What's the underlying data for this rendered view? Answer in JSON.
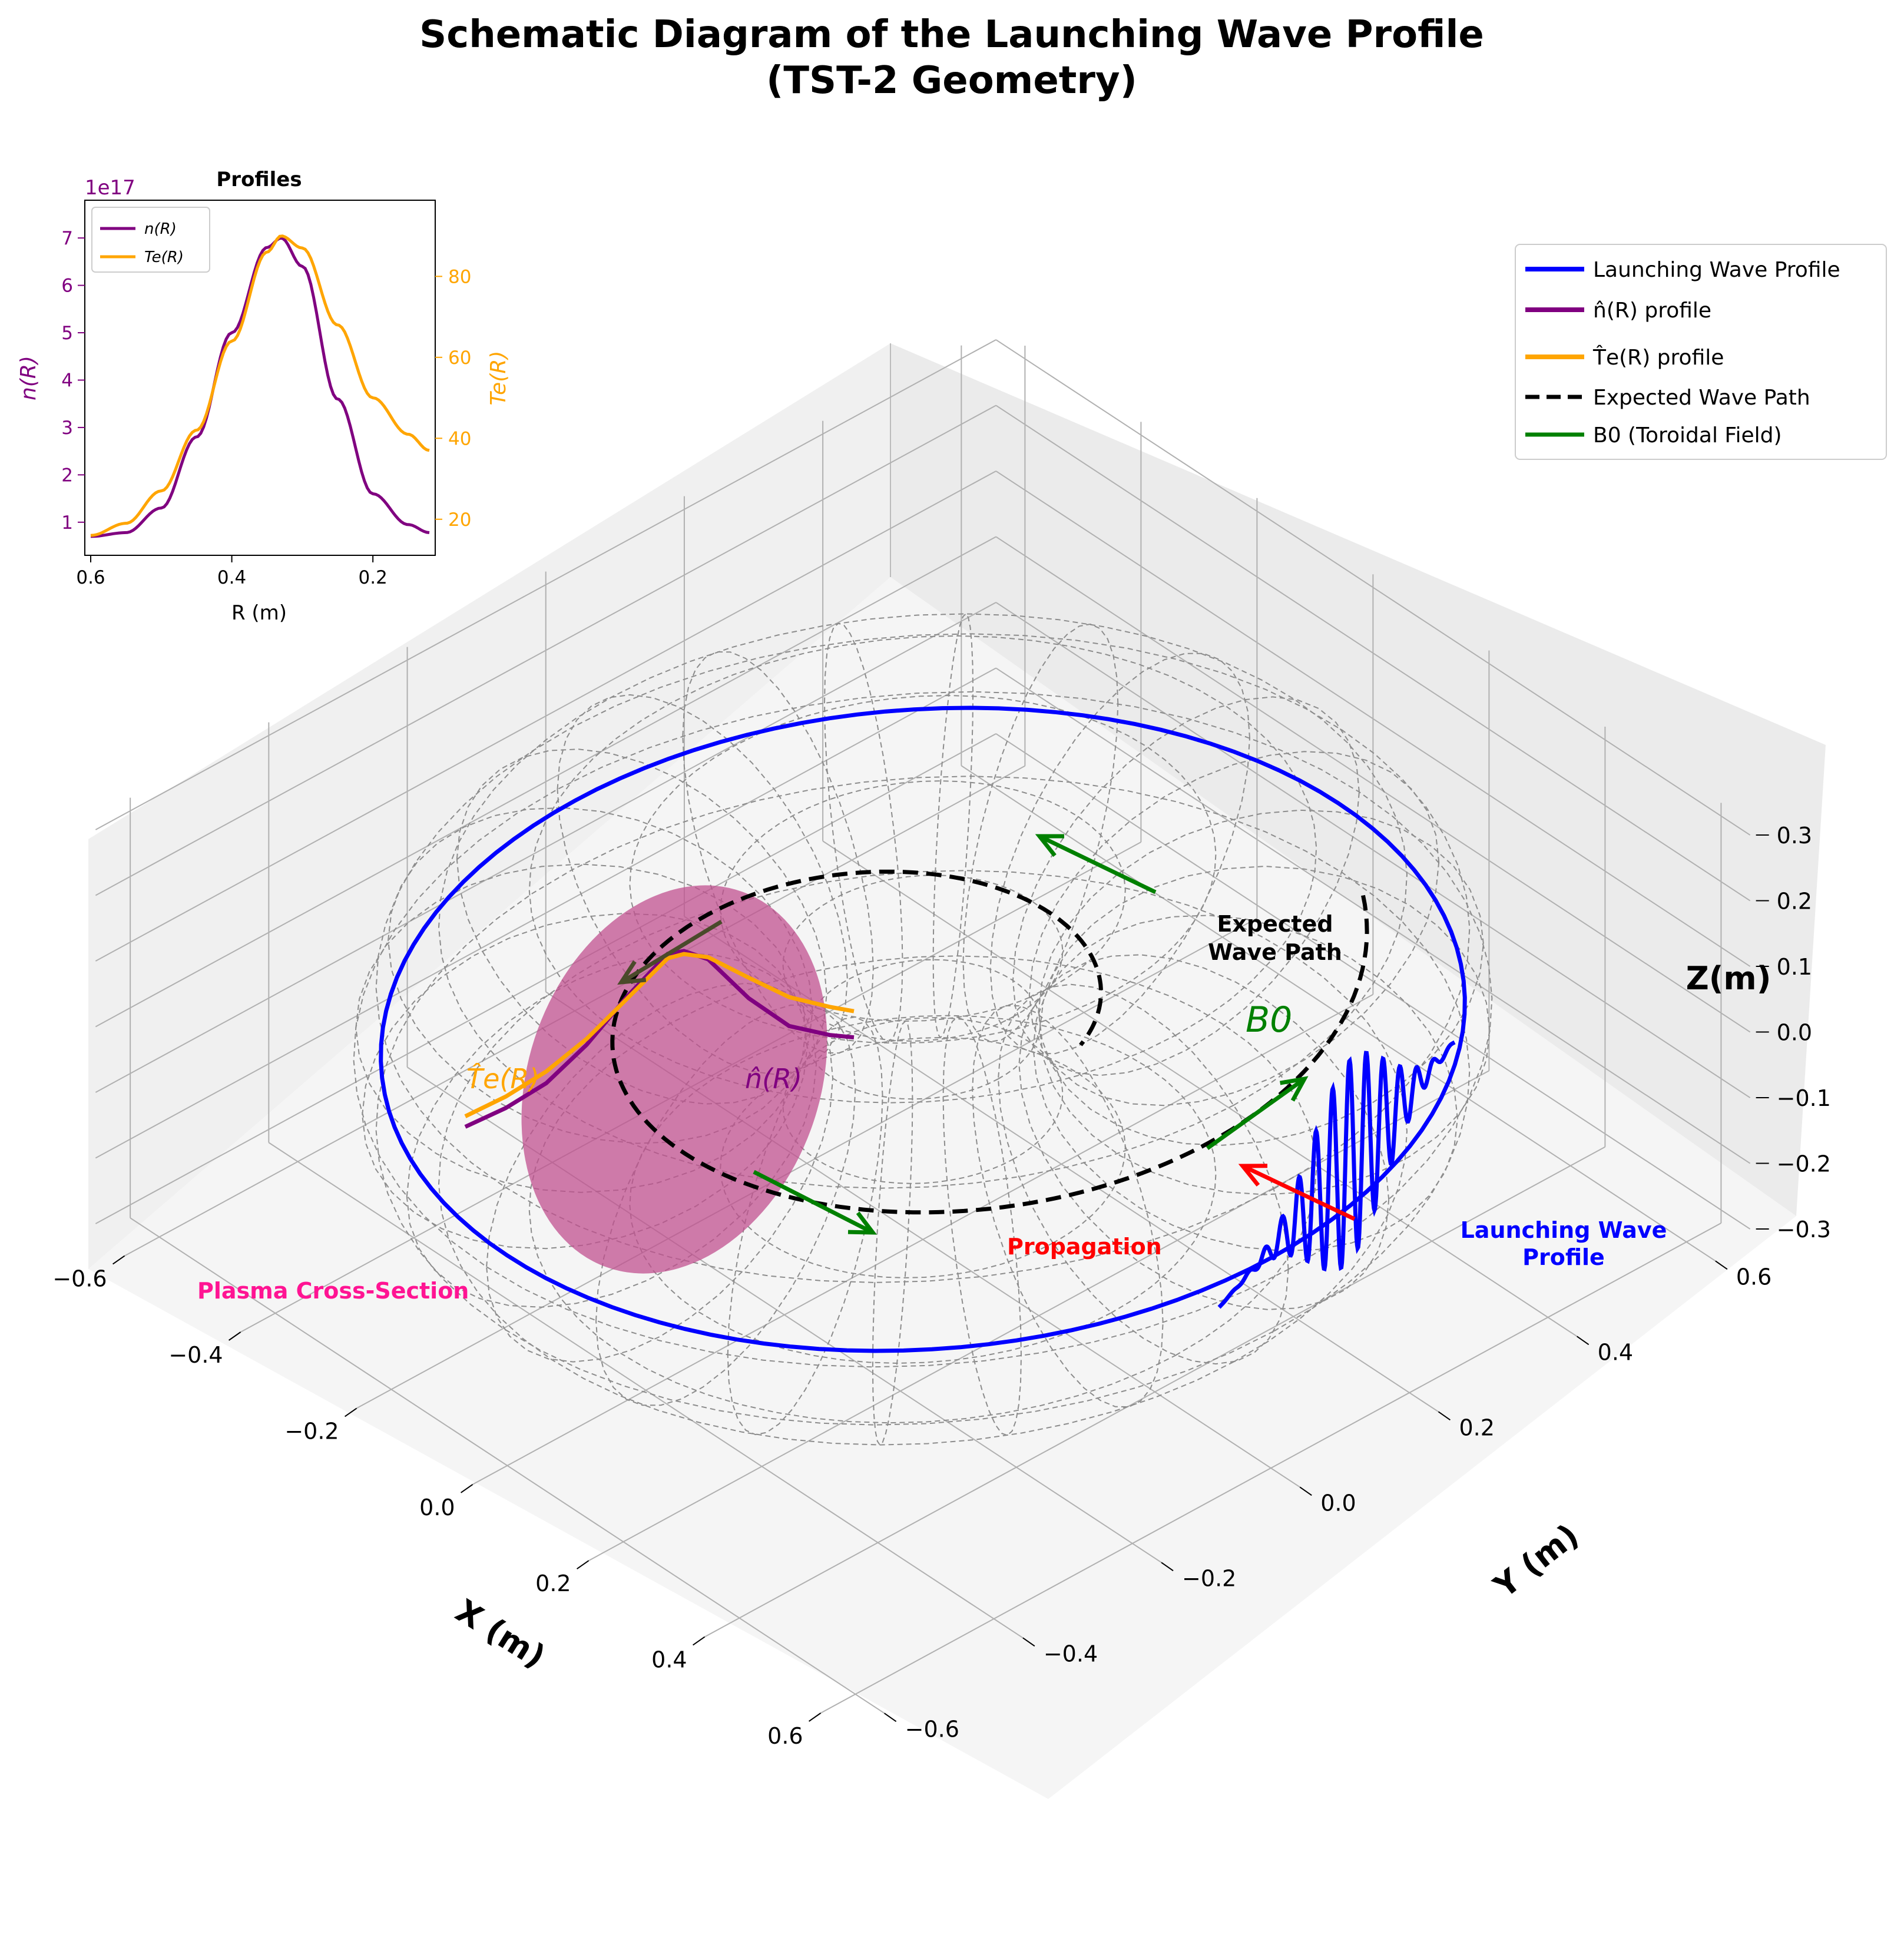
{
  "chart_data": {
    "type": "line3d",
    "title": [
      "Schematic Diagram of the Launching Wave Profile",
      "(TST-2 Geometry)"
    ],
    "xlabel": "X (m)",
    "ylabel": "Y (m)",
    "zlabel": "Z(m)",
    "xticks": [
      "−0.6",
      "−0.4",
      "−0.2",
      "0.0",
      "0.2",
      "0.4",
      "0.6"
    ],
    "yticks": [
      "−0.6",
      "−0.4",
      "−0.2",
      "0.0",
      "0.2",
      "0.4",
      "0.6"
    ],
    "zticks": [
      "−0.3",
      "−0.2",
      "−0.1",
      "0.0",
      "0.1",
      "0.2",
      "0.3"
    ],
    "xlim": [
      -0.65,
      0.65
    ],
    "ylim": [
      -0.65,
      0.65
    ],
    "zlim": [
      -0.32,
      0.32
    ],
    "torus": {
      "major_radius": 0.38,
      "minor_radius": 0.25
    },
    "series": [
      {
        "name": "Launching Wave Profile",
        "legend": "Launching Wave Profile",
        "color": "#0000ff",
        "radius": 0.6,
        "z": 0
      },
      {
        "name": "n_hat",
        "legend": "n̂(R) profile",
        "color": "#800080"
      },
      {
        "name": "Te_hat",
        "legend": "T̂e(R) profile",
        "color": "#ffa500"
      },
      {
        "name": "Expected Wave Path",
        "legend": "Expected Wave Path",
        "color": "#000000",
        "style": "dashed"
      },
      {
        "name": "B0",
        "legend": "B0 (Toroidal Field)",
        "color": "#008000"
      }
    ],
    "annotations": {
      "plasma": "Plasma Cross-Section",
      "propagation": "Propagation",
      "launch": [
        "Launching Wave",
        "Profile"
      ],
      "expected": [
        "Expected",
        "Wave Path"
      ],
      "b0": "B0",
      "n_label": "n̂(R)",
      "te_label": "T̂e(R)"
    },
    "inset": {
      "title": "Profiles",
      "xlabel": "R (m)",
      "ylabel_left": "n(R)",
      "ylabel_right": "Te(R)",
      "scale": "1e17",
      "xlim": [
        0.6,
        0.12
      ],
      "xticks": [
        "0.6",
        "0.4",
        "0.2"
      ],
      "yticks_left": [
        "1",
        "2",
        "3",
        "4",
        "5",
        "6",
        "7"
      ],
      "yticks_right": [
        "20",
        "40",
        "60",
        "80"
      ],
      "legend": [
        "n(R)",
        "Te(R)"
      ],
      "R": [
        0.6,
        0.55,
        0.5,
        0.45,
        0.4,
        0.35,
        0.33,
        0.3,
        0.25,
        0.2,
        0.15,
        0.12
      ],
      "n": [
        0.7,
        0.78,
        1.3,
        2.8,
        5.0,
        6.8,
        7.0,
        6.4,
        3.6,
        1.6,
        0.95,
        0.78
      ],
      "Te": [
        16,
        19,
        27,
        42,
        64,
        86,
        90,
        87,
        68,
        50,
        41,
        37
      ]
    }
  },
  "colors": {
    "blue": "#0000ff",
    "purple": "#800080",
    "orange": "#ffa500",
    "green": "#008000",
    "red": "#ff0000",
    "pink": "#ff1493",
    "plasma": "#c0508f",
    "grid": "#b0b0b0",
    "mesh": "#8c8c8c"
  }
}
